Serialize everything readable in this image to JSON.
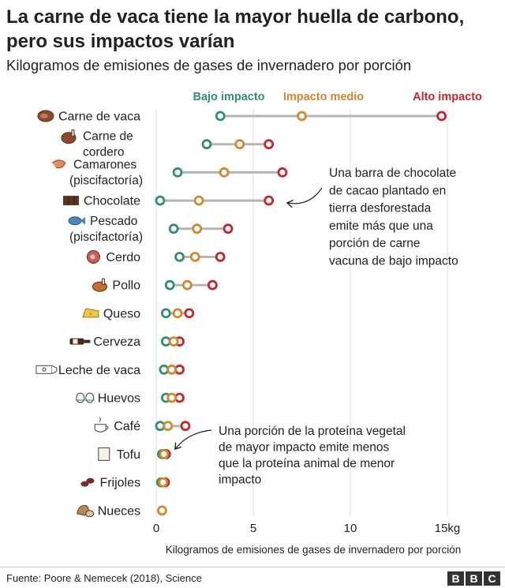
{
  "title": "La carne de vaca tiene la mayor huella de carbono, pero sus impactos varían",
  "subtitle": "Kilogramos de emisiones de gases de invernadero por porción",
  "source": "Fuente: Poore & Nemecek (2018), Science",
  "logo": [
    "B",
    "B",
    "C"
  ],
  "colors": {
    "low": "#2f8f6e",
    "mid": "#d4862c",
    "high": "#c4262c",
    "line": "#b5b5b5",
    "text": "#222222"
  },
  "chart_data": {
    "type": "scatter",
    "xlabel": "Kilogramos de emisiones de gases de invernadero por porción",
    "xlim": [
      0,
      15
    ],
    "xticks": [
      0,
      5,
      10,
      15
    ],
    "xtick_labels": [
      "0",
      "5",
      "10",
      "15kg"
    ],
    "grid": true,
    "legend": [
      "Bajo impacto",
      "Impacto medio",
      "Alto impacto"
    ],
    "categories": [
      {
        "label": "Carne de vaca",
        "icon": "beef-steak-icon",
        "low": 3.3,
        "mid": 7.5,
        "high": 14.7
      },
      {
        "label": "Carne de cordero",
        "icon": "lamb-icon",
        "low": 2.6,
        "mid": 4.3,
        "high": 5.8
      },
      {
        "label": "Camarones (piscifactoría)",
        "icon": "shrimp-icon",
        "low": 1.1,
        "mid": 3.5,
        "high": 6.5
      },
      {
        "label": "Chocolate",
        "icon": "chocolate-bar-icon",
        "low": 0.2,
        "mid": 2.2,
        "high": 5.8
      },
      {
        "label": "Pescado (piscifactoría)",
        "icon": "fish-icon",
        "low": 0.9,
        "mid": 2.1,
        "high": 3.7
      },
      {
        "label": "Cerdo",
        "icon": "pork-icon",
        "low": 1.2,
        "mid": 2.0,
        "high": 3.3
      },
      {
        "label": "Pollo",
        "icon": "chicken-icon",
        "low": 0.7,
        "mid": 1.6,
        "high": 2.9
      },
      {
        "label": "Queso",
        "icon": "cheese-icon",
        "low": 0.5,
        "mid": 1.1,
        "high": 1.7
      },
      {
        "label": "Cerveza",
        "icon": "beer-bottle-icon",
        "low": 0.5,
        "mid": 0.9,
        "high": 1.2
      },
      {
        "label": "Leche de vaca",
        "icon": "milk-carton-icon",
        "low": 0.4,
        "mid": 0.8,
        "high": 1.2
      },
      {
        "label": "Huevos",
        "icon": "eggs-icon",
        "low": 0.5,
        "mid": 0.8,
        "high": 1.2
      },
      {
        "label": "Café",
        "icon": "coffee-cup-icon",
        "low": 0.2,
        "mid": 0.6,
        "high": 1.5
      },
      {
        "label": "Tofu",
        "icon": "tofu-icon",
        "low": 0.3,
        "mid": 0.4,
        "high": 0.5
      },
      {
        "label": "Frijoles",
        "icon": "beans-icon",
        "low": 0.25,
        "mid": 0.35,
        "high": 0.45
      },
      {
        "label": "Nueces",
        "icon": "nuts-icon",
        "low": 0.3,
        "mid": 0.3,
        "high": 0.3
      }
    ],
    "annotations": [
      {
        "text": "Una barra de chocolate de cacao plantado en tierra desforestada emite más que una porción de carne vacuna de bajo impacto",
        "target": "Chocolate"
      },
      {
        "text": "Una porción de la proteína vegetal de mayor impacto emite menos que la proteína animal de menor impacto",
        "target": "Tofu"
      }
    ]
  }
}
